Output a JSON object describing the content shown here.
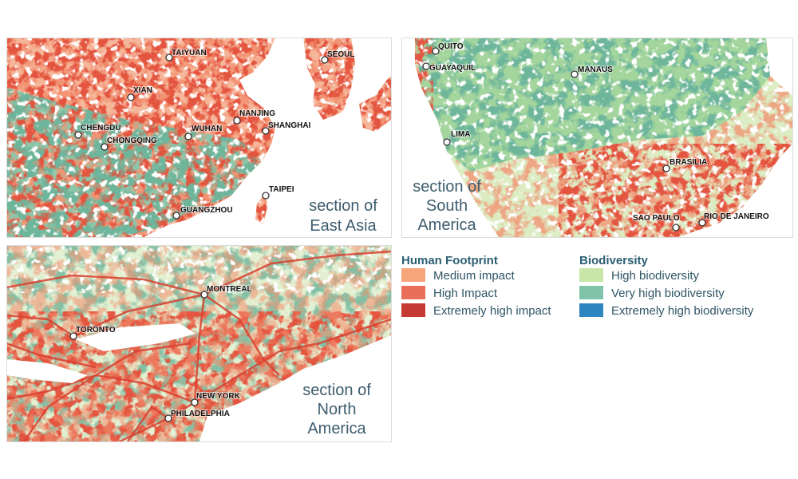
{
  "maps": [
    {
      "caption": [
        "section of",
        "East Asia"
      ],
      "cities": [
        "TAIYUAN",
        "XIAN",
        "CHENGDU",
        "CHONGQING",
        "WUHAN",
        "NANJING",
        "SHANGHAI",
        "SEOUL",
        "TAIPEI",
        "GUANGZHOU"
      ]
    },
    {
      "caption": [
        "section of",
        "South",
        "America"
      ],
      "cities": [
        "QUITO",
        "GUAYAQUIL",
        "MANAUS",
        "LIMA",
        "BRASILIA",
        "SAO PAULO",
        "RIO DE JANEIRO"
      ]
    },
    {
      "caption": [
        "section of",
        "North",
        "America"
      ],
      "cities": [
        "MONTREAL",
        "TORONTO",
        "NEW YORK",
        "PHILADELPHIA"
      ]
    }
  ],
  "legend": {
    "groups": [
      {
        "title": "Human Footprint",
        "items": [
          {
            "label": "Medium impact",
            "color": "#f7a57b"
          },
          {
            "label": "High Impact",
            "color": "#ea6f5a"
          },
          {
            "label": "Extremely high impact",
            "color": "#c53a33"
          }
        ]
      },
      {
        "title": "Biodiversity",
        "items": [
          {
            "label": "High biodiversity",
            "color": "#c7e6a8"
          },
          {
            "label": "Very high biodiversity",
            "color": "#7fc3a9"
          },
          {
            "label": "Extremely high biodiversity",
            "color": "#2e86c1"
          }
        ]
      }
    ]
  }
}
